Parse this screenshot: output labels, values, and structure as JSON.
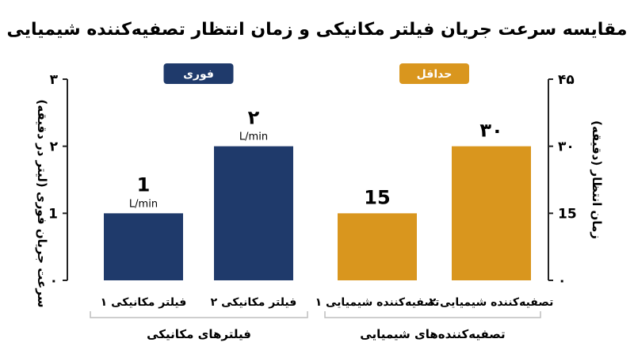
{
  "chart_data": {
    "type": "bar",
    "title": "مقایسه سرعت جریان فیلتر مکانیکی و زمان انتظار تصفیه‌کننده شیمیایی",
    "colors": {
      "mechanical": "#1f3a6b",
      "chemical": "#d9961e",
      "axis": "#222222",
      "bracket": "#bdbdbd"
    },
    "left_axis": {
      "label": "سرعت جریان فوری (لیتر در دقیقه)",
      "range": [
        0,
        3
      ],
      "ticks": [
        "۰",
        "1",
        "۲",
        "۳"
      ]
    },
    "right_axis": {
      "label": "زمان انتظار (دقیقه)",
      "range": [
        0,
        45
      ],
      "ticks": [
        "۰",
        "15",
        "۳۰",
        "۴۵"
      ]
    },
    "groups": [
      {
        "name": "فیلترهای مکانیکی",
        "badge": "فوری",
        "axis": "left",
        "color": "mechanical",
        "bars": [
          {
            "category": "فیلتر مکانیکی ۱",
            "value": 1,
            "value_label": "1",
            "unit": "L/min"
          },
          {
            "category": "فیلتر مکانیکی ۲",
            "value": 2,
            "value_label": "۲",
            "unit": "L/min"
          }
        ]
      },
      {
        "name": "تصفیه‌کننده‌های شیمیایی",
        "badge": "حداقل",
        "axis": "right",
        "color": "chemical",
        "bars": [
          {
            "category": "تصفیه‌کننده شیمیایی ۱",
            "value": 15,
            "value_label": "15",
            "unit": ""
          },
          {
            "category": "تصفیه‌کننده شیمیایی ۲",
            "value": 30,
            "value_label": "۳۰",
            "unit": ""
          }
        ]
      }
    ]
  }
}
